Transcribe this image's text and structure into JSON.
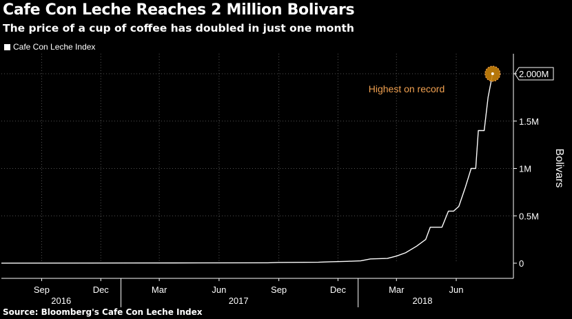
{
  "header": {
    "title": "Cafe Con Leche Reaches 2 Million Bolivars",
    "subtitle": "The price of a cup of coffee has doubled in just one month"
  },
  "legend": {
    "label": "Cafe Con Leche Index"
  },
  "footer": {
    "source": "Source: Bloomberg's Cafe Con Leche Index"
  },
  "colors": {
    "line": "#ffffff",
    "annotation": "#f0a050",
    "marker": "#c8820a",
    "grid": "#555555"
  },
  "chart_data": {
    "type": "line",
    "title": "Cafe Con Leche Reaches 2 Million Bolivars",
    "subtitle": "The price of a cup of coffee has doubled in just one month",
    "ylabel": "Bolivars",
    "ylim": [
      0,
      2200000
    ],
    "yticks": [
      {
        "value": 0,
        "label": "0"
      },
      {
        "value": 500000,
        "label": "0.5M"
      },
      {
        "value": 1000000,
        "label": "1M"
      },
      {
        "value": 1500000,
        "label": "1.5M"
      },
      {
        "value": 2000000,
        "label": "2.000M"
      }
    ],
    "xlim": [
      "2016-07-01",
      "2018-08-28"
    ],
    "xticks": [
      {
        "date": "2016-09-01",
        "label": "Sep"
      },
      {
        "date": "2016-12-01",
        "label": "Dec"
      },
      {
        "date": "2017-03-01",
        "label": "Mar"
      },
      {
        "date": "2017-06-01",
        "label": "Jun"
      },
      {
        "date": "2017-09-01",
        "label": "Sep"
      },
      {
        "date": "2017-12-01",
        "label": "Dec"
      },
      {
        "date": "2018-03-01",
        "label": "Mar"
      },
      {
        "date": "2018-06-01",
        "label": "Jun"
      }
    ],
    "years": [
      {
        "label": "2016",
        "center": "2016-10-01"
      },
      {
        "label": "2017",
        "center": "2017-07-01"
      },
      {
        "label": "2018",
        "center": "2018-04-10"
      }
    ],
    "year_boundaries": [
      "2017-01-01",
      "2018-01-01"
    ],
    "grid": true,
    "legend_position": "top-left",
    "series": [
      {
        "name": "Cafe Con Leche Index",
        "points": [
          {
            "x": "2016-07-01",
            "y": 1000
          },
          {
            "x": "2017-01-15",
            "y": 2000
          },
          {
            "x": "2017-05-01",
            "y": 3000
          },
          {
            "x": "2017-08-15",
            "y": 4000
          },
          {
            "x": "2017-09-01",
            "y": 8000
          },
          {
            "x": "2017-11-01",
            "y": 10000
          },
          {
            "x": "2017-11-20",
            "y": 15000
          },
          {
            "x": "2017-12-15",
            "y": 20000
          },
          {
            "x": "2018-01-05",
            "y": 25000
          },
          {
            "x": "2018-01-20",
            "y": 45000
          },
          {
            "x": "2018-02-15",
            "y": 50000
          },
          {
            "x": "2018-03-01",
            "y": 75000
          },
          {
            "x": "2018-03-15",
            "y": 110000
          },
          {
            "x": "2018-04-01",
            "y": 180000
          },
          {
            "x": "2018-04-15",
            "y": 250000
          },
          {
            "x": "2018-04-22",
            "y": 380000
          },
          {
            "x": "2018-05-10",
            "y": 380000
          },
          {
            "x": "2018-05-20",
            "y": 550000
          },
          {
            "x": "2018-05-28",
            "y": 550000
          },
          {
            "x": "2018-06-05",
            "y": 600000
          },
          {
            "x": "2018-06-15",
            "y": 800000
          },
          {
            "x": "2018-06-24",
            "y": 1000000
          },
          {
            "x": "2018-07-01",
            "y": 1000000
          },
          {
            "x": "2018-07-05",
            "y": 1400000
          },
          {
            "x": "2018-07-14",
            "y": 1400000
          },
          {
            "x": "2018-07-20",
            "y": 1750000
          },
          {
            "x": "2018-07-27",
            "y": 2000000
          }
        ]
      }
    ],
    "annotations": [
      {
        "text": "Highest on record",
        "x": "2018-07-27",
        "y": 2000000
      }
    ]
  }
}
